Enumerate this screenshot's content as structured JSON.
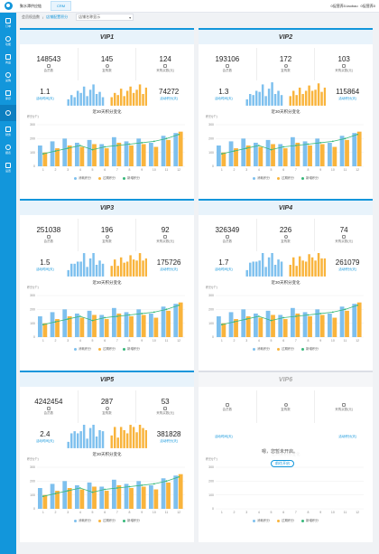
{
  "app": {
    "title": "聚水潭供应链",
    "tab": "CRM"
  },
  "user": {
    "org": "0促营养0-taobao",
    "store": "0促营养0"
  },
  "sidebar": [
    {
      "label": "订单",
      "icon": "order-icon"
    },
    {
      "label": "功能",
      "icon": "star-icon"
    },
    {
      "label": "商品",
      "icon": "goods-icon"
    },
    {
      "label": "采购",
      "icon": "purchase-icon"
    },
    {
      "label": "库存",
      "icon": "warehouse-icon"
    },
    {
      "label": "",
      "icon": "location-icon"
    },
    {
      "label": "财务",
      "icon": "finance-icon"
    },
    {
      "label": "报表",
      "icon": "report-icon"
    },
    {
      "label": "设置",
      "icon": "settings-icon"
    }
  ],
  "breadcrumb": {
    "home": "会员权益数",
    "current": "店铺配置积分",
    "select": "店铺名称显示"
  },
  "labels": {
    "members": "会员数",
    "purchases": "复购数",
    "consume": "来购买数(元)",
    "active": "活动时间(天)",
    "activeAmt": "活动积分(天)",
    "trend": "近30天积分变化",
    "yunit": "积分(个)",
    "legend": [
      "消耗积分",
      "过期积分",
      "新增积分"
    ]
  },
  "colors": {
    "accent": "#1296db",
    "blue": "#7ec0ee",
    "orange": "#f9b43c",
    "green": "#37b87a"
  },
  "cards": [
    {
      "name": "VIP1",
      "members": "148543",
      "purchases": "145",
      "consume": "124",
      "active": "1.1",
      "activeAmt": "74272"
    },
    {
      "name": "VIP2",
      "members": "193106",
      "purchases": "172",
      "consume": "103",
      "active": "1.3",
      "activeAmt": "115864"
    },
    {
      "name": "VIP3",
      "members": "251038",
      "purchases": "196",
      "consume": "92",
      "active": "1.5",
      "activeAmt": "175726"
    },
    {
      "name": "VIP4",
      "members": "326349",
      "purchases": "226",
      "consume": "74",
      "active": "1.7",
      "activeAmt": "261079"
    },
    {
      "name": "VIP5",
      "members": "4242454",
      "purchases": "287",
      "consume": "53",
      "active": "2.4",
      "activeAmt": "381828"
    },
    {
      "name": "VIP6",
      "members": "",
      "purchases": "",
      "consume": "",
      "active": "",
      "activeAmt": "",
      "overlay": "嗯，您暂未开启。",
      "button": "前往开启"
    }
  ],
  "chart_data": {
    "type": "bar",
    "categories": [
      "1",
      "2",
      "3",
      "4",
      "5",
      "6",
      "7",
      "8",
      "9",
      "10",
      "11",
      "12"
    ],
    "yticks": [
      "0",
      "100",
      "200",
      "300"
    ],
    "ylim": [
      0,
      300
    ],
    "series": [
      {
        "name": "消耗积分",
        "values": [
          150,
          180,
          200,
          170,
          190,
          160,
          210,
          180,
          200,
          170,
          220,
          240
        ]
      },
      {
        "name": "过期积分",
        "values": [
          100,
          130,
          150,
          140,
          160,
          130,
          170,
          150,
          160,
          140,
          190,
          250
        ]
      },
      {
        "name": "新增积分",
        "values": [
          90,
          110,
          130,
          150,
          120,
          140,
          150,
          160,
          170,
          180,
          200,
          230
        ]
      }
    ]
  }
}
